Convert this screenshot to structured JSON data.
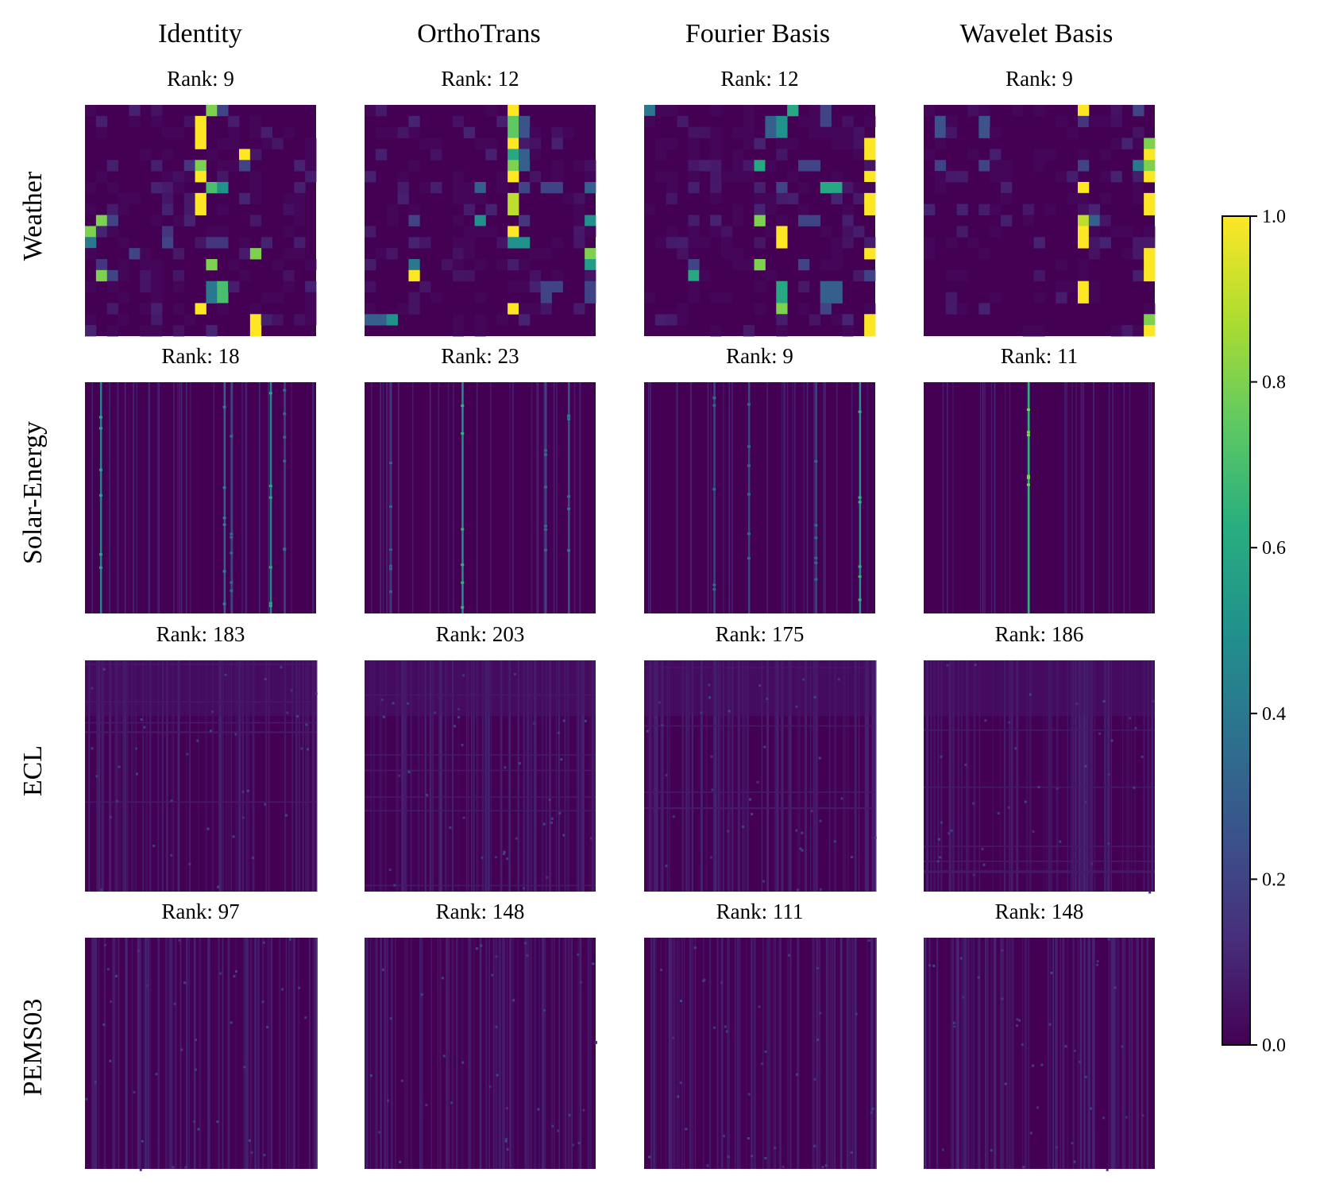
{
  "chart_data": {
    "type": "heatmap",
    "layout": "grid",
    "columns": [
      "Identity",
      "OrthoTrans",
      "Fourier Basis",
      "Wavelet Basis"
    ],
    "rows": [
      "Weather",
      "Solar-Energy",
      "ECL",
      "PEMS03"
    ],
    "rank_prefix": "Rank: ",
    "ranks": [
      [
        9,
        12,
        12,
        9
      ],
      [
        18,
        23,
        9,
        11
      ],
      [
        183,
        203,
        175,
        186
      ],
      [
        97,
        148,
        111,
        148
      ]
    ],
    "colormap": "viridis",
    "colorbar": {
      "range": [
        0.0,
        1.0
      ],
      "ticks": [
        "0.0",
        "0.2",
        "0.4",
        "0.6",
        "0.8",
        "1.0"
      ]
    },
    "matrix_sizes": {
      "Weather": 21,
      "Solar-Energy": 137,
      "ECL": 321,
      "PEMS03": 358
    },
    "weather_highlights": [
      [
        [
          0,
          11,
          0.8
        ],
        [
          0,
          12,
          0.2
        ],
        [
          1,
          10,
          1
        ],
        [
          2,
          10,
          1
        ],
        [
          3,
          10,
          1
        ],
        [
          4,
          14,
          1
        ],
        [
          5,
          9,
          0.15
        ],
        [
          5,
          10,
          0.8
        ],
        [
          5,
          14,
          0.2
        ],
        [
          6,
          10,
          1
        ],
        [
          7,
          11,
          0.7
        ],
        [
          7,
          12,
          0.5
        ],
        [
          8,
          10,
          1
        ],
        [
          9,
          10,
          1
        ],
        [
          10,
          1,
          0.8
        ],
        [
          10,
          2,
          0.2
        ],
        [
          11,
          0,
          0.8
        ],
        [
          11,
          7,
          0.15
        ],
        [
          12,
          0,
          0.4
        ],
        [
          12,
          7,
          0.2
        ],
        [
          12,
          11,
          0.15
        ],
        [
          12,
          12,
          0.15
        ],
        [
          13,
          4,
          0.2
        ],
        [
          13,
          15,
          0.8
        ],
        [
          14,
          1,
          0.15
        ],
        [
          14,
          11,
          0.8
        ],
        [
          15,
          1,
          0.8
        ],
        [
          15,
          2,
          0.2
        ],
        [
          16,
          11,
          0.4
        ],
        [
          16,
          12,
          0.7
        ],
        [
          17,
          11,
          0.4
        ],
        [
          17,
          12,
          0.7
        ],
        [
          18,
          10,
          1
        ],
        [
          19,
          15,
          1
        ],
        [
          20,
          15,
          1
        ]
      ],
      [
        [
          0,
          13,
          1
        ],
        [
          1,
          13,
          0.75
        ],
        [
          1,
          14,
          0.25
        ],
        [
          2,
          13,
          0.75
        ],
        [
          2,
          14,
          0.25
        ],
        [
          3,
          13,
          1
        ],
        [
          4,
          13,
          0.6
        ],
        [
          4,
          14,
          0.3
        ],
        [
          5,
          13,
          0.8
        ],
        [
          5,
          14,
          0.3
        ],
        [
          6,
          13,
          1
        ],
        [
          7,
          10,
          0.3
        ],
        [
          7,
          14,
          0.2
        ],
        [
          7,
          16,
          0.2
        ],
        [
          7,
          17,
          0.2
        ],
        [
          7,
          20,
          0.3
        ],
        [
          8,
          13,
          0.9
        ],
        [
          9,
          13,
          0.9
        ],
        [
          10,
          4,
          0.2
        ],
        [
          10,
          10,
          0.5
        ],
        [
          10,
          14,
          0.15
        ],
        [
          10,
          20,
          0.5
        ],
        [
          11,
          13,
          1
        ],
        [
          12,
          13,
          0.5
        ],
        [
          12,
          14,
          0.5
        ],
        [
          13,
          20,
          0.8
        ],
        [
          14,
          4,
          0.4
        ],
        [
          14,
          20,
          0.55
        ],
        [
          15,
          4,
          1
        ],
        [
          16,
          16,
          0.2
        ],
        [
          16,
          17,
          0.2
        ],
        [
          16,
          20,
          0.2
        ],
        [
          17,
          16,
          0.2
        ],
        [
          17,
          20,
          0.2
        ],
        [
          18,
          13,
          1
        ],
        [
          19,
          0,
          0.3
        ],
        [
          19,
          1,
          0.3
        ],
        [
          19,
          2,
          0.5
        ]
      ],
      [
        [
          0,
          0,
          0.4
        ],
        [
          0,
          13,
          0.6
        ],
        [
          0,
          16,
          0.2
        ],
        [
          1,
          11,
          0.3
        ],
        [
          1,
          12,
          0.5
        ],
        [
          1,
          16,
          0.2
        ],
        [
          2,
          11,
          0.3
        ],
        [
          2,
          12,
          0.5
        ],
        [
          3,
          20,
          1
        ],
        [
          4,
          20,
          1
        ],
        [
          5,
          10,
          0.6
        ],
        [
          5,
          14,
          0.2
        ],
        [
          5,
          15,
          0.2
        ],
        [
          6,
          20,
          1
        ],
        [
          7,
          12,
          0.2
        ],
        [
          7,
          16,
          0.6
        ],
        [
          7,
          17,
          0.6
        ],
        [
          8,
          20,
          1
        ],
        [
          9,
          20,
          1
        ],
        [
          10,
          10,
          0.8
        ],
        [
          10,
          14,
          0.2
        ],
        [
          10,
          15,
          0.2
        ],
        [
          11,
          12,
          1
        ],
        [
          12,
          12,
          1
        ],
        [
          13,
          20,
          1
        ],
        [
          14,
          4,
          0.2
        ],
        [
          14,
          10,
          0.8
        ],
        [
          14,
          14,
          0.2
        ],
        [
          15,
          4,
          0.6
        ],
        [
          15,
          20,
          0.2
        ],
        [
          16,
          12,
          0.6
        ],
        [
          16,
          16,
          0.3
        ],
        [
          16,
          17,
          0.3
        ],
        [
          17,
          12,
          0.6
        ],
        [
          17,
          16,
          0.3
        ],
        [
          17,
          17,
          0.3
        ],
        [
          18,
          12,
          0.8
        ],
        [
          18,
          16,
          0.2
        ],
        [
          19,
          20,
          1
        ],
        [
          20,
          20,
          1
        ]
      ],
      [
        [
          0,
          14,
          1
        ],
        [
          0,
          19,
          0.2
        ],
        [
          1,
          1,
          0.25
        ],
        [
          1,
          5,
          0.25
        ],
        [
          1,
          14,
          0.15
        ],
        [
          2,
          1,
          0.25
        ],
        [
          2,
          5,
          0.25
        ],
        [
          3,
          20,
          0.8
        ],
        [
          4,
          20,
          1
        ],
        [
          5,
          1,
          0.2
        ],
        [
          5,
          5,
          0.2
        ],
        [
          5,
          14,
          0.2
        ],
        [
          5,
          19,
          0.4
        ],
        [
          5,
          20,
          0.8
        ],
        [
          6,
          20,
          1
        ],
        [
          7,
          14,
          1
        ],
        [
          8,
          20,
          1
        ],
        [
          9,
          20,
          1
        ],
        [
          10,
          14,
          0.9
        ],
        [
          10,
          15,
          0.3
        ],
        [
          11,
          14,
          1
        ],
        [
          12,
          14,
          1
        ],
        [
          13,
          20,
          1
        ],
        [
          14,
          20,
          1
        ],
        [
          15,
          20,
          1
        ],
        [
          16,
          14,
          1
        ],
        [
          17,
          14,
          1
        ],
        [
          19,
          20,
          0.8
        ],
        [
          20,
          20,
          1
        ]
      ]
    ],
    "solar_stripes": [
      [
        [
          0.065,
          0.45
        ],
        [
          0.6,
          0.3
        ],
        [
          0.63,
          0.2
        ],
        [
          0.8,
          0.45
        ],
        [
          0.86,
          0.2
        ]
      ],
      [
        [
          0.11,
          0.15
        ],
        [
          0.42,
          0.5
        ],
        [
          0.78,
          0.2
        ],
        [
          0.88,
          0.25
        ]
      ],
      [
        [
          0.3,
          0.2
        ],
        [
          0.45,
          0.2
        ],
        [
          0.74,
          0.2
        ],
        [
          0.93,
          0.5
        ]
      ],
      [
        [
          0.45,
          0.65
        ]
      ]
    ]
  }
}
